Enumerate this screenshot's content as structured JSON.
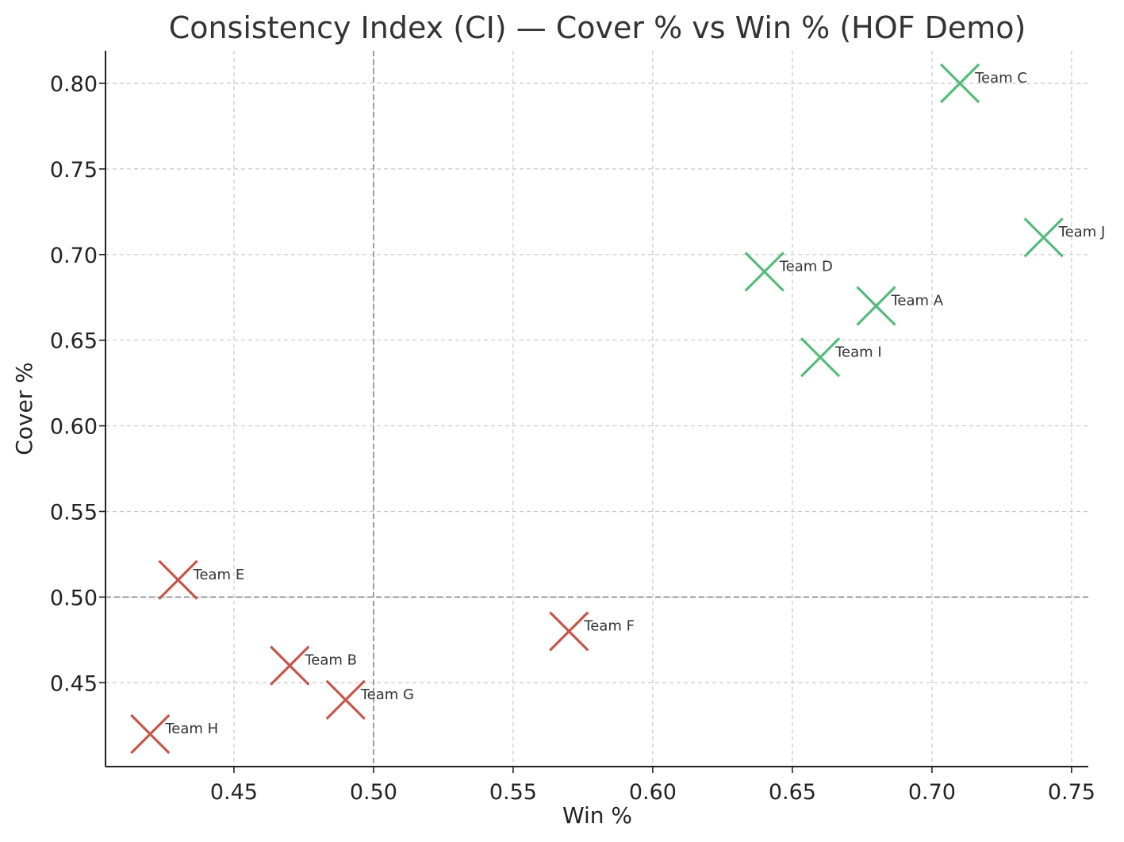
{
  "chart_data": {
    "type": "scatter",
    "title": "Consistency Index (CI) — Cover % vs Win % (HOF Demo)",
    "xlabel": "Win %",
    "ylabel": "Cover %",
    "xlim": [
      0.404,
      0.756
    ],
    "ylim": [
      0.401,
      0.819
    ],
    "x_ticks": [
      "0.45",
      "0.50",
      "0.55",
      "0.60",
      "0.65",
      "0.70",
      "0.75"
    ],
    "y_ticks": [
      "0.45",
      "0.50",
      "0.55",
      "0.60",
      "0.65",
      "0.70",
      "0.75",
      "0.80"
    ],
    "grid": true,
    "reference_lines": {
      "x": 0.5,
      "y": 0.5
    },
    "marker": "x",
    "colors": {
      "above": "#55bb7a",
      "below": "#c4574b"
    },
    "points": [
      {
        "label": "Team A",
        "x": 0.68,
        "y": 0.67,
        "group": "above"
      },
      {
        "label": "Team B",
        "x": 0.47,
        "y": 0.46,
        "group": "below"
      },
      {
        "label": "Team C",
        "x": 0.71,
        "y": 0.8,
        "group": "above"
      },
      {
        "label": "Team D",
        "x": 0.64,
        "y": 0.69,
        "group": "above"
      },
      {
        "label": "Team E",
        "x": 0.43,
        "y": 0.51,
        "group": "below"
      },
      {
        "label": "Team F",
        "x": 0.57,
        "y": 0.48,
        "group": "below"
      },
      {
        "label": "Team G",
        "x": 0.49,
        "y": 0.44,
        "group": "below"
      },
      {
        "label": "Team H",
        "x": 0.42,
        "y": 0.42,
        "group": "below"
      },
      {
        "label": "Team I",
        "x": 0.66,
        "y": 0.64,
        "group": "above"
      },
      {
        "label": "Team J",
        "x": 0.74,
        "y": 0.71,
        "group": "above"
      }
    ]
  }
}
